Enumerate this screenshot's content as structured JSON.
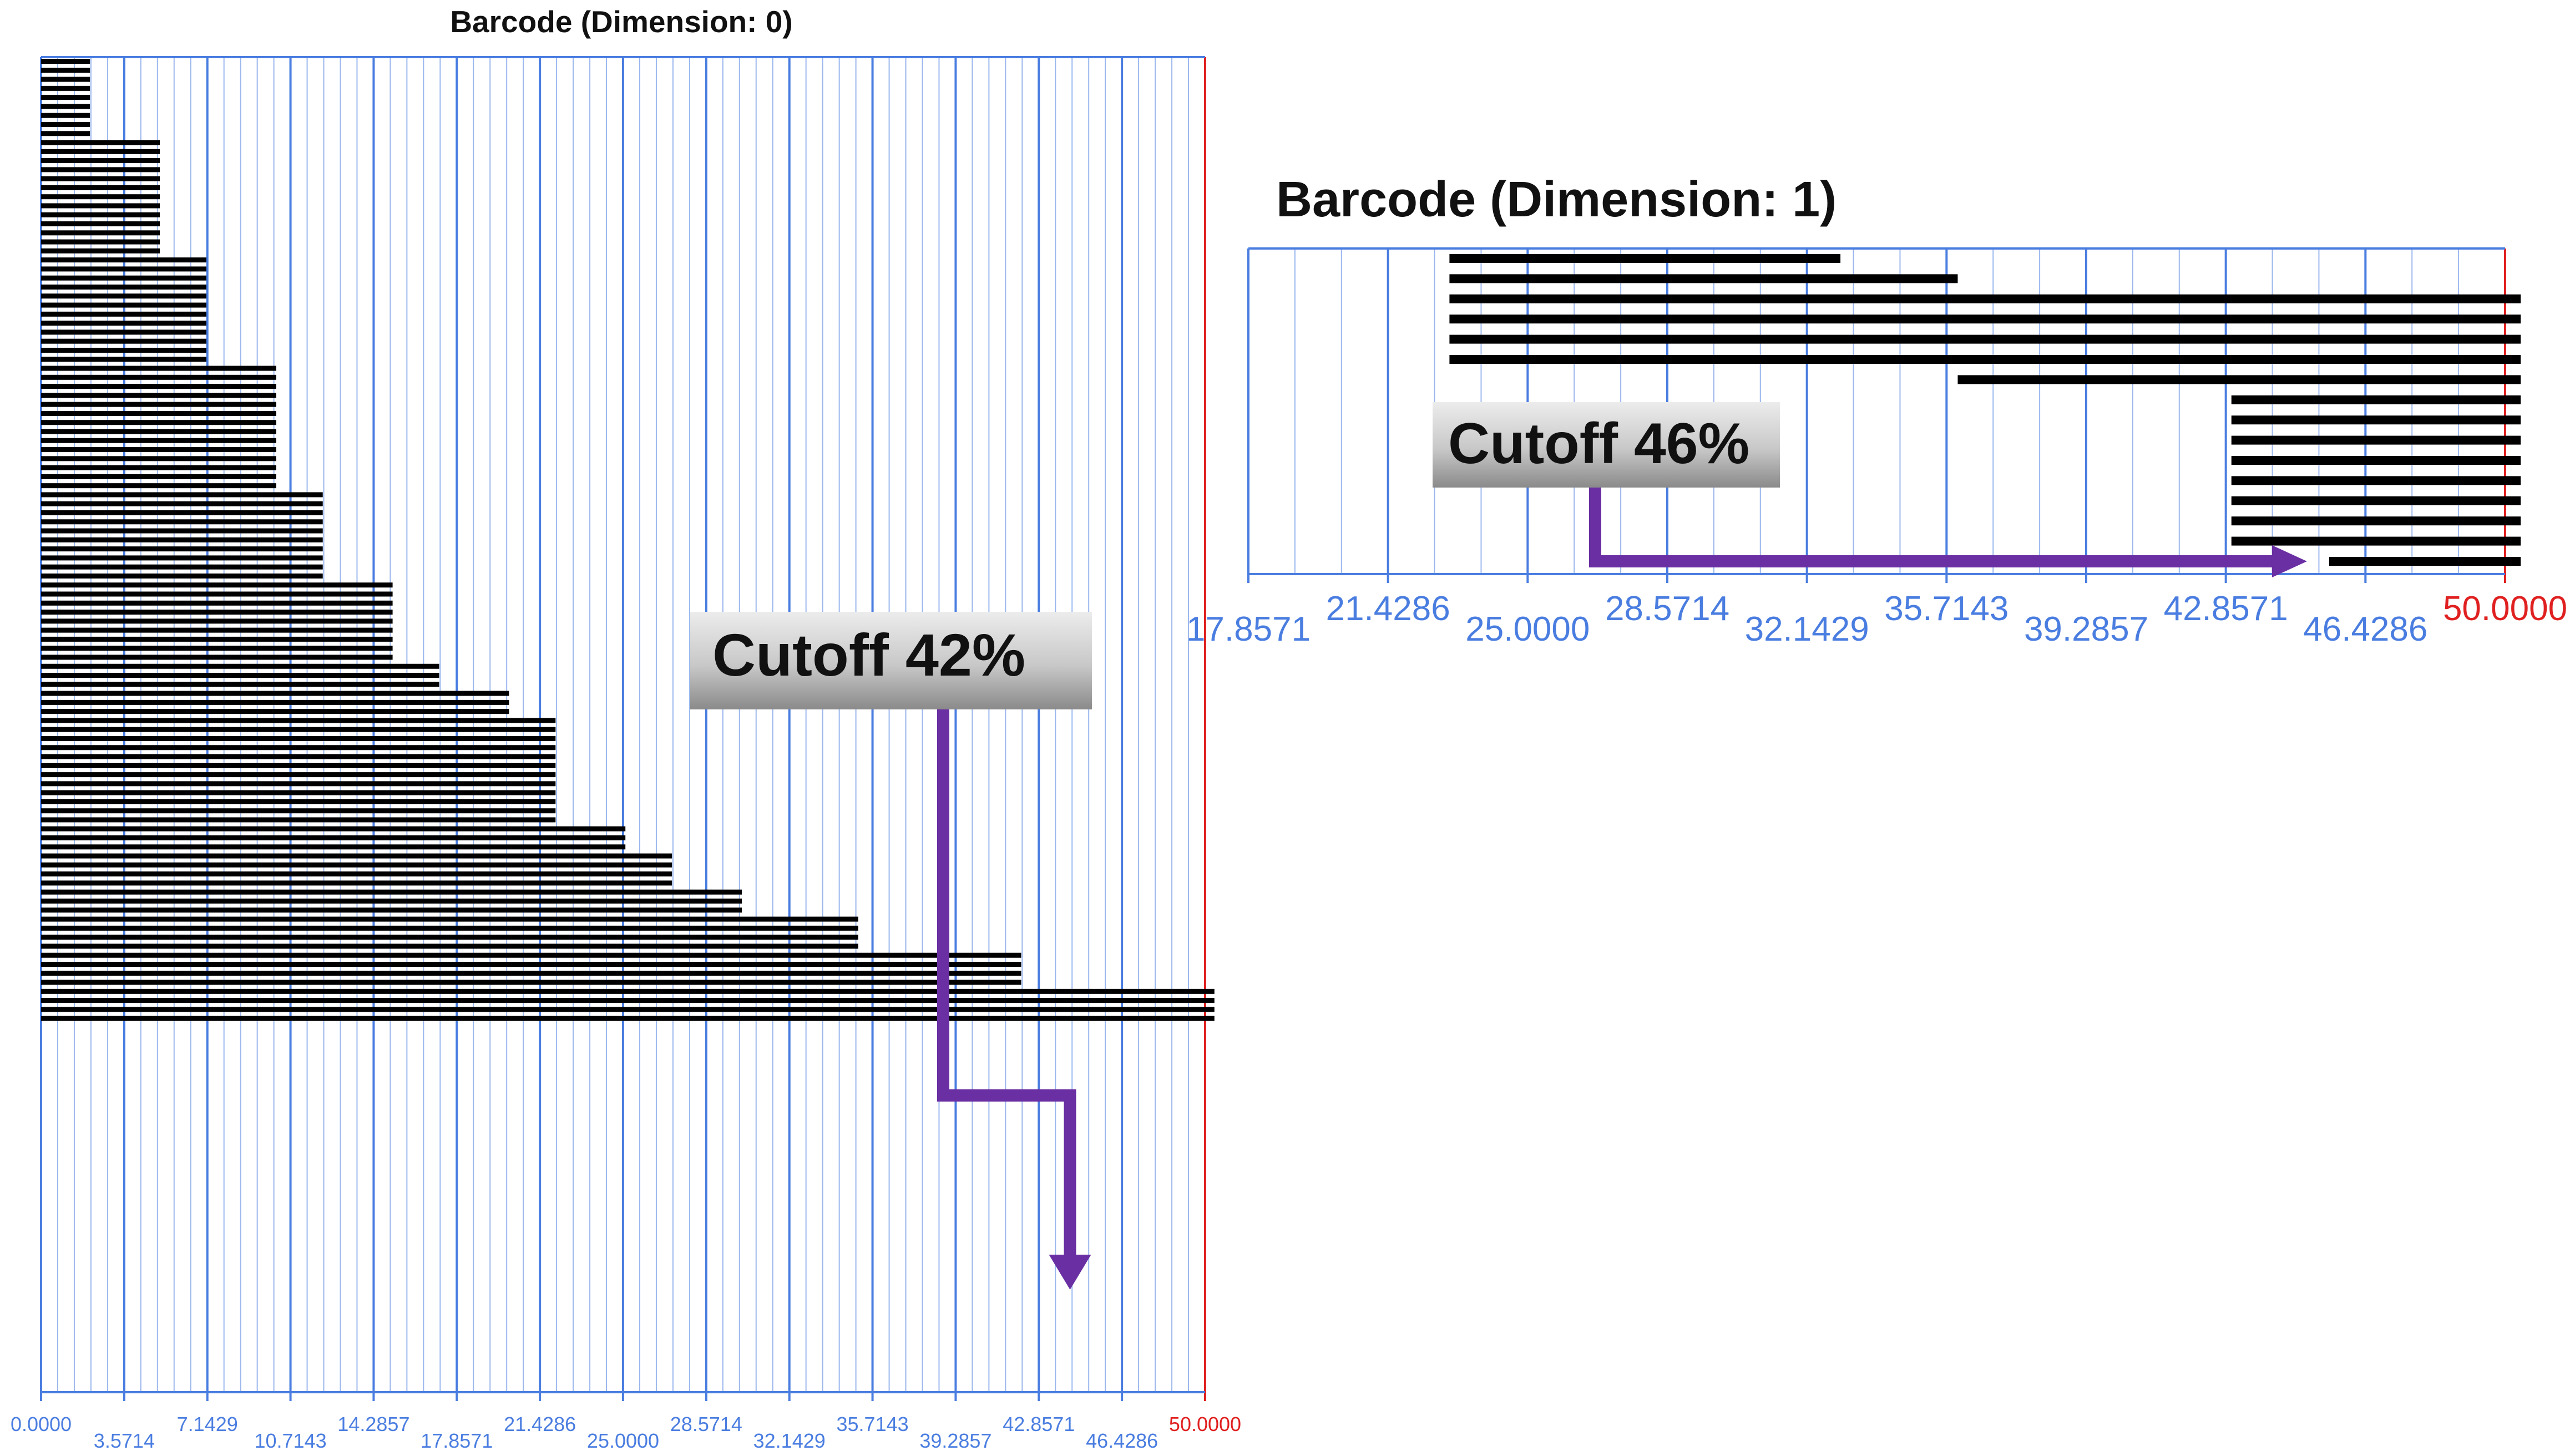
{
  "chart_data": [
    {
      "type": "barcode",
      "title": "Barcode (Dimension: 0)",
      "xlim": [
        0,
        50
      ],
      "axis_color": "#4a7de0",
      "end_color": "#e02020",
      "bar_color": "#000000",
      "tick_labels": [
        "0.0000",
        "3.5714",
        "7.1429",
        "10.7143",
        "14.2857",
        "17.8571",
        "21.4286",
        "25.0000",
        "28.5714",
        "32.1429",
        "35.7143",
        "39.2857",
        "42.8571",
        "46.4286",
        "50.0000"
      ],
      "tick_values": [
        0,
        3.5714,
        7.1429,
        10.7143,
        14.2857,
        17.8571,
        21.4286,
        25.0,
        28.5714,
        32.1429,
        35.7143,
        39.2857,
        42.8571,
        46.4286,
        50.0
      ],
      "bar_groups": [
        {
          "start": 0,
          "end": 2.1,
          "count": 9
        },
        {
          "start": 0,
          "end": 5.1,
          "count": 13
        },
        {
          "start": 0,
          "end": 7.1,
          "count": 12
        },
        {
          "start": 0,
          "end": 10.1,
          "count": 14
        },
        {
          "start": 0,
          "end": 12.1,
          "count": 10
        },
        {
          "start": 0,
          "end": 15.1,
          "count": 9
        },
        {
          "start": 0,
          "end": 17.1,
          "count": 3
        },
        {
          "start": 0,
          "end": 20.1,
          "count": 3
        },
        {
          "start": 0,
          "end": 22.1,
          "count": 12
        },
        {
          "start": 0,
          "end": 25.1,
          "count": 3
        },
        {
          "start": 0,
          "end": 27.1,
          "count": 4
        },
        {
          "start": 0,
          "end": 30.1,
          "count": 3
        },
        {
          "start": 0,
          "end": 35.1,
          "count": 4
        },
        {
          "start": 0,
          "end": 42.1,
          "count": 4
        },
        {
          "start": 0,
          "end": 50.4,
          "count": 4
        }
      ],
      "annotation": {
        "label": "Cutoff 42%",
        "cutoff_value": 42.1
      }
    },
    {
      "type": "barcode",
      "title": "Barcode (Dimension: 1)",
      "xlim": [
        17.8571,
        50
      ],
      "axis_color": "#4a7de0",
      "end_color": "#e02020",
      "bar_color": "#000000",
      "tick_labels": [
        "17.8571",
        "21.4286",
        "25.0000",
        "28.5714",
        "32.1429",
        "35.7143",
        "39.2857",
        "42.8571",
        "46.4286",
        "50.0000"
      ],
      "tick_values": [
        17.8571,
        21.4286,
        25.0,
        28.5714,
        32.1429,
        35.7143,
        39.2857,
        42.8571,
        46.4286,
        50.0
      ],
      "bars": [
        {
          "start": 23.0,
          "end": 33.0
        },
        {
          "start": 23.0,
          "end": 36.0
        },
        {
          "start": 23.0,
          "end": 50.4
        },
        {
          "start": 23.0,
          "end": 50.4
        },
        {
          "start": 23.0,
          "end": 50.4
        },
        {
          "start": 23.0,
          "end": 50.4
        },
        {
          "start": 36.0,
          "end": 50.4
        },
        {
          "start": 43.0,
          "end": 50.4
        },
        {
          "start": 43.0,
          "end": 50.4
        },
        {
          "start": 43.0,
          "end": 50.4
        },
        {
          "start": 43.0,
          "end": 50.4
        },
        {
          "start": 43.0,
          "end": 50.4
        },
        {
          "start": 43.0,
          "end": 50.4
        },
        {
          "start": 43.0,
          "end": 50.4
        },
        {
          "start": 43.0,
          "end": 50.4
        },
        {
          "start": 45.5,
          "end": 50.4
        }
      ],
      "annotation": {
        "label": "Cutoff 46%",
        "cutoff_value": 45.5
      }
    }
  ]
}
